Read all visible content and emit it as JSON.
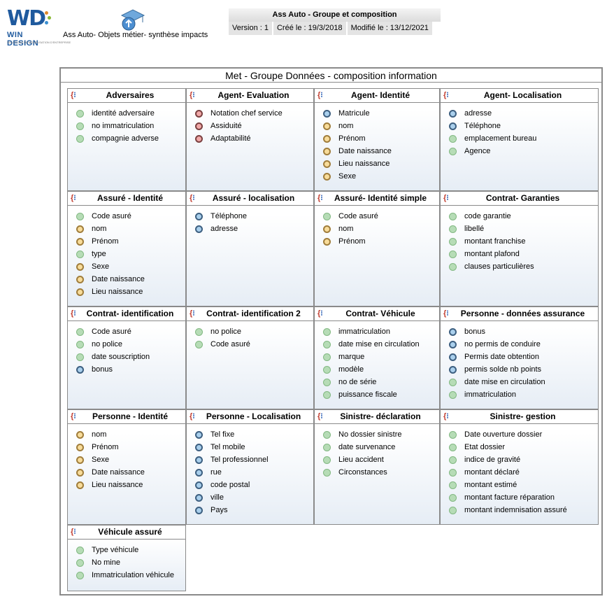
{
  "header": {
    "logo_text": "WIN DESIGN",
    "logo_mark": "WD",
    "logo_sub": "SOLUTIONS DE MODÉLISATION D'ENTREPRISE",
    "model_label": "Ass Auto- Objets métier- synthèse impacts",
    "title": "Ass Auto - Groupe et composition",
    "version": "Version : 1",
    "created": "Créé le : 19/3/2018",
    "modified": "Modifié le : 13/12/2021"
  },
  "frame_title": "Met - Groupe Données - composition information",
  "colors": {
    "green": "#b6dcb6",
    "red": "#f0a8a8",
    "blue": "#a9cfec",
    "yellow": "#f8dc9a"
  },
  "cards": [
    {
      "title": "Adversaires",
      "items": [
        {
          "label": "identité adversaire",
          "status": "green"
        },
        {
          "label": "no immatriculation",
          "status": "green"
        },
        {
          "label": "compagnie adverse",
          "status": "green"
        }
      ]
    },
    {
      "title": "Agent- Evaluation",
      "items": [
        {
          "label": "Notation chef service",
          "status": "red"
        },
        {
          "label": "Assiduité",
          "status": "red"
        },
        {
          "label": "Adaptabilité",
          "status": "red"
        }
      ]
    },
    {
      "title": "Agent- Identité",
      "items": [
        {
          "label": "Matricule",
          "status": "blue"
        },
        {
          "label": "nom",
          "status": "yellow"
        },
        {
          "label": "Prénom",
          "status": "yellow"
        },
        {
          "label": "Date naissance",
          "status": "yellow"
        },
        {
          "label": "Lieu naissance",
          "status": "yellow"
        },
        {
          "label": "Sexe",
          "status": "yellow"
        }
      ]
    },
    {
      "title": "Agent- Localisation",
      "items": [
        {
          "label": "adresse",
          "status": "blue"
        },
        {
          "label": "Téléphone",
          "status": "blue"
        },
        {
          "label": "emplacement bureau",
          "status": "green"
        },
        {
          "label": "Agence",
          "status": "green"
        }
      ]
    },
    {
      "title": "Assuré - Identité",
      "items": [
        {
          "label": "Code asuré",
          "status": "green"
        },
        {
          "label": "nom",
          "status": "yellow"
        },
        {
          "label": "Prénom",
          "status": "yellow"
        },
        {
          "label": "type",
          "status": "green"
        },
        {
          "label": "Sexe",
          "status": "yellow"
        },
        {
          "label": "Date naissance",
          "status": "yellow"
        },
        {
          "label": "Lieu naissance",
          "status": "yellow"
        }
      ]
    },
    {
      "title": "Assuré - localisation",
      "items": [
        {
          "label": "Téléphone",
          "status": "blue"
        },
        {
          "label": "adresse",
          "status": "blue"
        }
      ]
    },
    {
      "title": "Assuré- Identité simple",
      "items": [
        {
          "label": "Code asuré",
          "status": "green"
        },
        {
          "label": "nom",
          "status": "yellow"
        },
        {
          "label": "Prénom",
          "status": "yellow"
        }
      ]
    },
    {
      "title": "Contrat- Garanties",
      "items": [
        {
          "label": "code garantie",
          "status": "green"
        },
        {
          "label": "libellé",
          "status": "green"
        },
        {
          "label": "montant franchise",
          "status": "green"
        },
        {
          "label": "montant plafond",
          "status": "green"
        },
        {
          "label": "clauses particulières",
          "status": "green"
        }
      ]
    },
    {
      "title": "Contrat- identification",
      "items": [
        {
          "label": "Code asuré",
          "status": "green"
        },
        {
          "label": "no police",
          "status": "green"
        },
        {
          "label": "date souscription",
          "status": "green"
        },
        {
          "label": "bonus",
          "status": "blue"
        }
      ]
    },
    {
      "title": "Contrat- identification 2",
      "items": [
        {
          "label": "no police",
          "status": "green"
        },
        {
          "label": "Code asuré",
          "status": "green"
        }
      ]
    },
    {
      "title": "Contrat- Véhicule",
      "items": [
        {
          "label": "immatriculation",
          "status": "green"
        },
        {
          "label": "date mise en circulation",
          "status": "green"
        },
        {
          "label": "marque",
          "status": "green"
        },
        {
          "label": "modèle",
          "status": "green"
        },
        {
          "label": "no de série",
          "status": "green"
        },
        {
          "label": "puissance fiscale",
          "status": "green"
        }
      ]
    },
    {
      "title": "Personne - données assurance",
      "items": [
        {
          "label": "bonus",
          "status": "blue"
        },
        {
          "label": "no permis de conduire",
          "status": "blue"
        },
        {
          "label": "Permis date obtention",
          "status": "blue"
        },
        {
          "label": "permis solde nb points",
          "status": "blue"
        },
        {
          "label": "date mise en circulation",
          "status": "green"
        },
        {
          "label": "immatriculation",
          "status": "green"
        }
      ]
    },
    {
      "title": "Personne - Identité",
      "items": [
        {
          "label": "nom",
          "status": "yellow"
        },
        {
          "label": "Prénom",
          "status": "yellow"
        },
        {
          "label": "Sexe",
          "status": "yellow"
        },
        {
          "label": "Date naissance",
          "status": "yellow"
        },
        {
          "label": "Lieu naissance",
          "status": "yellow"
        }
      ]
    },
    {
      "title": "Personne - Localisation",
      "items": [
        {
          "label": "Tel fixe",
          "status": "blue"
        },
        {
          "label": "Tel mobile",
          "status": "blue"
        },
        {
          "label": "Tel professionnel",
          "status": "blue"
        },
        {
          "label": "rue",
          "status": "blue"
        },
        {
          "label": "code postal",
          "status": "blue"
        },
        {
          "label": "ville",
          "status": "blue"
        },
        {
          "label": "Pays",
          "status": "blue"
        }
      ]
    },
    {
      "title": "Sinistre- déclaration",
      "items": [
        {
          "label": "No dossier sinistre",
          "status": "green"
        },
        {
          "label": "date survenance",
          "status": "green"
        },
        {
          "label": "Lieu accident",
          "status": "green"
        },
        {
          "label": "Circonstances",
          "status": "green"
        }
      ]
    },
    {
      "title": "Sinistre- gestion",
      "items": [
        {
          "label": "Date ouverture dossier",
          "status": "green"
        },
        {
          "label": "Etat dossier",
          "status": "green"
        },
        {
          "label": "indice de gravité",
          "status": "green"
        },
        {
          "label": "montant déclaré",
          "status": "green"
        },
        {
          "label": "montant estimé",
          "status": "green"
        },
        {
          "label": "montant facture réparation",
          "status": "green"
        },
        {
          "label": "montant indemnisation assuré",
          "status": "green"
        }
      ]
    },
    {
      "title": "Véhicule assuré",
      "items": [
        {
          "label": "Type véhicule",
          "status": "green"
        },
        {
          "label": "No mine",
          "status": "green"
        },
        {
          "label": "Immatriculation véhicule",
          "status": "green"
        }
      ]
    }
  ]
}
